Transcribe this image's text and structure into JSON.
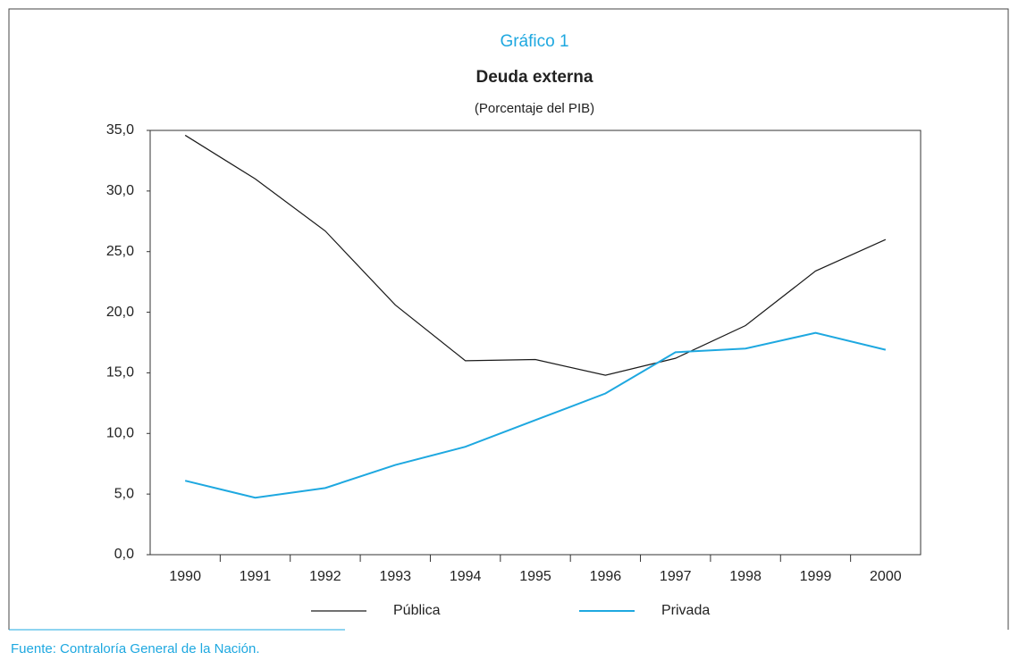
{
  "chart_data": {
    "type": "line",
    "title": "Gráfico 1",
    "subtitle": "Deuda externa",
    "y_label": "(Porcentaje del PIB)",
    "source": "Fuente: Contraloría General de la Nación.",
    "categories": [
      "1990",
      "1991",
      "1992",
      "1993",
      "1994",
      "1995",
      "1996",
      "1997",
      "1998",
      "1999",
      "2000"
    ],
    "series": [
      {
        "name": "Pública",
        "color": "#1a1a1a",
        "values": [
          34.6,
          31.0,
          26.7,
          20.6,
          16.0,
          16.1,
          14.8,
          16.2,
          18.9,
          23.4,
          26.0
        ]
      },
      {
        "name": "Privada",
        "color": "#1ea8e0",
        "values": [
          6.1,
          4.7,
          5.5,
          7.4,
          8.9,
          11.1,
          13.3,
          16.7,
          17.0,
          18.3,
          16.9
        ]
      }
    ],
    "ylim": [
      0,
      35
    ],
    "yticks": [
      {
        "value": 0,
        "label": "0,0"
      },
      {
        "value": 5,
        "label": "5,0"
      },
      {
        "value": 10,
        "label": "10,0"
      },
      {
        "value": 15,
        "label": "15,0"
      },
      {
        "value": 20,
        "label": "20,0"
      },
      {
        "value": 25,
        "label": "25,0"
      },
      {
        "value": 30,
        "label": "30,0"
      },
      {
        "value": 35,
        "label": "35,0"
      }
    ],
    "grid": false,
    "legend": "bottom"
  }
}
